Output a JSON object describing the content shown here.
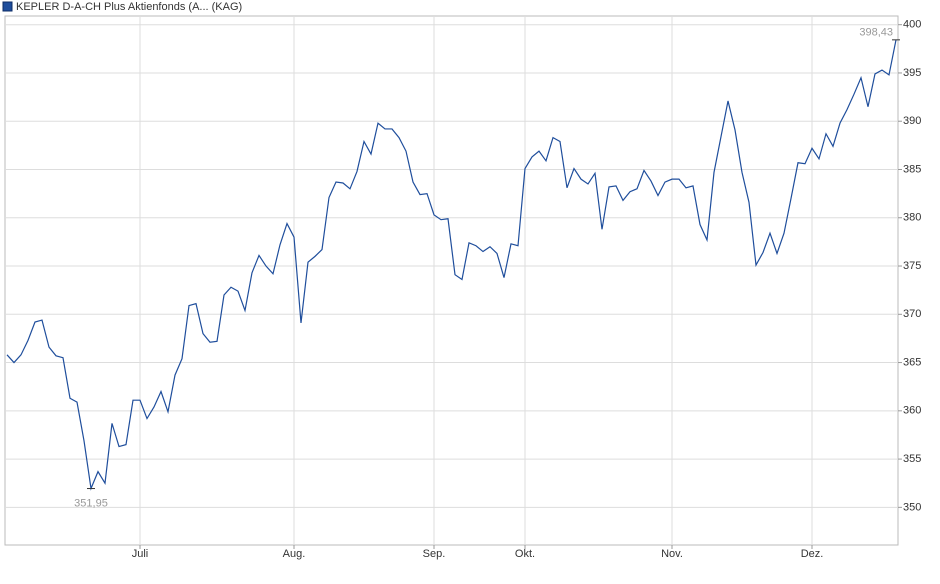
{
  "chart_data": {
    "type": "line",
    "categories": [
      null,
      null,
      null,
      null,
      null,
      null,
      null,
      null,
      null,
      null,
      null,
      null,
      null,
      null,
      null,
      null,
      null,
      null,
      null,
      "Juli",
      null,
      null,
      null,
      null,
      null,
      null,
      null,
      null,
      null,
      null,
      null,
      null,
      null,
      null,
      null,
      null,
      null,
      null,
      null,
      null,
      null,
      "Aug.",
      null,
      null,
      null,
      null,
      null,
      null,
      null,
      null,
      null,
      null,
      null,
      null,
      null,
      null,
      null,
      null,
      null,
      null,
      null,
      "Sep.",
      null,
      null,
      null,
      null,
      null,
      null,
      null,
      null,
      null,
      null,
      null,
      null,
      "Okt.",
      null,
      null,
      null,
      null,
      null,
      null,
      null,
      null,
      null,
      null,
      null,
      null,
      null,
      null,
      null,
      null,
      null,
      null,
      null,
      null,
      "Nov.",
      null,
      null,
      null,
      null,
      null,
      null,
      null,
      null,
      null,
      null,
      null,
      null,
      null,
      null,
      null,
      null,
      null,
      null,
      null,
      "Dez.",
      null,
      null,
      null,
      null,
      null,
      null,
      null,
      null,
      null,
      null,
      null,
      null
    ],
    "series": [
      {
        "name": "KEPLER D-A-CH Plus Aktienfonds (A... (KAG)",
        "color": "#1f4e9c",
        "values": [
          365.8,
          365.0,
          365.8,
          367.3,
          369.2,
          369.4,
          366.6,
          365.7,
          365.5,
          361.3,
          360.9,
          356.9,
          351.95,
          353.7,
          352.5,
          358.7,
          356.3,
          356.5,
          361.1,
          361.1,
          359.2,
          360.4,
          362.0,
          359.9,
          363.7,
          365.4,
          370.9,
          371.1,
          368.0,
          367.1,
          367.2,
          372.0,
          372.8,
          372.4,
          370.4,
          374.3,
          376.1,
          375.0,
          374.2,
          377.2,
          379.4,
          378.0,
          369.1,
          375.4,
          376.0,
          376.7,
          382.1,
          383.7,
          383.6,
          383.0,
          384.8,
          387.9,
          386.6,
          389.8,
          389.2,
          389.2,
          388.3,
          386.9,
          383.7,
          382.4,
          382.5,
          380.3,
          379.8,
          379.9,
          374.1,
          373.6,
          377.4,
          377.1,
          376.5,
          377.0,
          376.3,
          373.8,
          377.3,
          377.1,
          385.1,
          386.3,
          386.9,
          385.9,
          388.3,
          387.9,
          383.1,
          385.1,
          384.0,
          383.5,
          384.6,
          378.8,
          383.2,
          383.3,
          381.8,
          382.7,
          383.0,
          384.9,
          383.8,
          382.3,
          383.7,
          384.0,
          384.0,
          383.1,
          383.3,
          379.3,
          377.7,
          384.7,
          388.4,
          392.1,
          389.1,
          384.7,
          381.6,
          375.1,
          376.4,
          378.4,
          376.3,
          378.4,
          382.0,
          385.7,
          385.6,
          387.2,
          386.1,
          388.7,
          387.4,
          389.8,
          391.2,
          392.8,
          394.5,
          391.5,
          394.9,
          395.3,
          394.8,
          398.43
        ],
        "value_labels": [
          null,
          null,
          null,
          null,
          null,
          null,
          null,
          null,
          null,
          null,
          null,
          null,
          "351,95",
          null,
          null,
          null,
          null,
          null,
          null,
          null,
          null,
          null,
          null,
          null,
          null,
          null,
          null,
          null,
          null,
          null,
          null,
          null,
          null,
          null,
          null,
          null,
          null,
          null,
          null,
          null,
          null,
          null,
          null,
          null,
          null,
          null,
          null,
          null,
          null,
          null,
          null,
          null,
          null,
          null,
          null,
          null,
          null,
          null,
          null,
          null,
          null,
          null,
          null,
          null,
          null,
          null,
          null,
          null,
          null,
          null,
          null,
          null,
          null,
          null,
          null,
          null,
          null,
          null,
          null,
          null,
          null,
          null,
          null,
          null,
          null,
          null,
          null,
          null,
          null,
          null,
          null,
          null,
          null,
          null,
          null,
          null,
          null,
          null,
          null,
          null,
          null,
          null,
          null,
          null,
          null,
          null,
          null,
          null,
          null,
          null,
          null,
          null,
          null,
          null,
          null,
          null,
          null,
          null,
          null,
          null,
          null,
          null,
          null,
          null,
          null,
          null,
          null,
          "398,43"
        ]
      }
    ],
    "ylim": [
      346.1,
      400.9
    ],
    "yticks": [
      350,
      355,
      360,
      365,
      370,
      375,
      380,
      385,
      390,
      395,
      400
    ],
    "grid": true
  }
}
